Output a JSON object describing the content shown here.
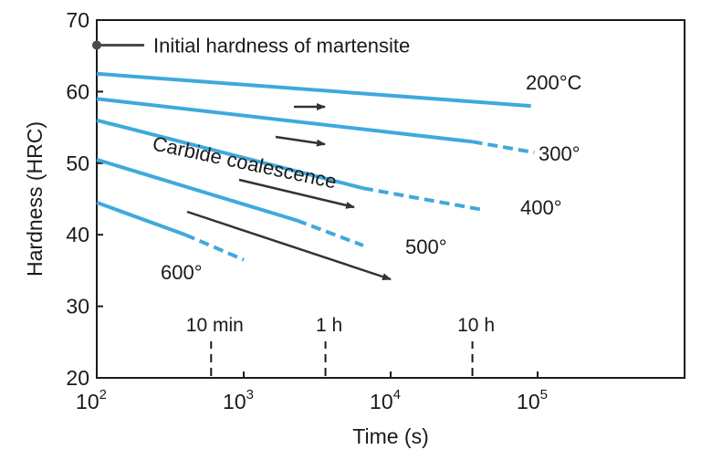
{
  "chart_data": {
    "type": "line",
    "xlabel": "Time (s)",
    "ylabel": "Hardness (HRC)",
    "x_scale": "log",
    "xlim": [
      100,
      1000000
    ],
    "ylim": [
      20,
      70
    ],
    "x_ticks": [
      {
        "value": 100,
        "base": "10",
        "exp": "2"
      },
      {
        "value": 1000,
        "base": "10",
        "exp": "3"
      },
      {
        "value": 10000,
        "base": "10",
        "exp": "4"
      },
      {
        "value": 100000,
        "base": "10",
        "exp": "5"
      }
    ],
    "y_ticks": [
      20,
      30,
      40,
      50,
      60,
      70
    ],
    "grid": false,
    "line_color": "#3fa9dc",
    "series": [
      {
        "name": "200°C",
        "x": [
          100,
          90000
        ],
        "y": [
          62.5,
          58
        ],
        "dashed_x": [],
        "dashed_y": []
      },
      {
        "name": "300°",
        "x": [
          100,
          36000
        ],
        "y": [
          59,
          53
        ],
        "dashed_x": [
          36000,
          95000
        ],
        "dashed_y": [
          53,
          51.5
        ]
      },
      {
        "name": "400°",
        "x": [
          100,
          6500
        ],
        "y": [
          56,
          46.5
        ],
        "dashed_x": [
          6500,
          42000
        ],
        "dashed_y": [
          46.5,
          43.5
        ]
      },
      {
        "name": "500°",
        "x": [
          100,
          2300
        ],
        "y": [
          50.5,
          42
        ],
        "dashed_x": [
          2300,
          6500
        ],
        "dashed_y": [
          42,
          38.5
        ]
      },
      {
        "name": "600°",
        "x": [
          100,
          400
        ],
        "y": [
          44.5,
          40
        ],
        "dashed_x": [
          400,
          1000
        ],
        "dashed_y": [
          40,
          36.5
        ]
      }
    ],
    "initial_hardness": {
      "y": 66.5,
      "label": "Initial hardness of martensite"
    },
    "annotation": {
      "text": "Carbide coalescence"
    },
    "time_marks": [
      {
        "label": "10 min",
        "x": 600
      },
      {
        "label": "1 h",
        "x": 3600
      },
      {
        "label": "10 h",
        "x": 36000
      }
    ]
  }
}
